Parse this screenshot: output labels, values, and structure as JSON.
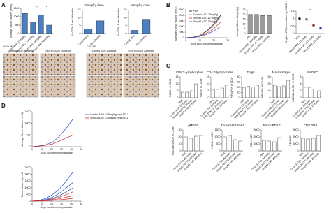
{
  "panel_letters": [
    "A",
    "B",
    "C",
    "D"
  ],
  "ihc": {
    "headers": [
      "ASO IHC",
      "CD8 IHC"
    ],
    "labels": [
      "Control ASO 25mg/kg",
      "SMYD3 ASO 25mg/kg",
      "Control ASO 25mg/kg",
      "SMYD3 ASO 25mg/kg"
    ]
  },
  "chart_data": [
    {
      "type": "bar",
      "ylabel": "Average Tumor Volume (mm3)",
      "categories": [
        "Control ASO 25mg/kg",
        "Smyd3 ASO 25mg/kg",
        "Control ASO 50mg/kg",
        "Smyd3 ASO 50mg/kg"
      ],
      "values": [
        1200,
        700,
        1100,
        500
      ],
      "color": "#4a7fc1",
      "ylim": [
        0,
        1500
      ],
      "yticks": [
        0,
        500,
        1000,
        1500
      ],
      "annotations": [
        "*",
        "*"
      ]
    },
    {
      "type": "bar",
      "title": "25mg/kg dose",
      "ylabel": "% CD8+ T cell infiltration",
      "categories": [
        "Control ASO",
        "Smyd3 ASO"
      ],
      "values": [
        3,
        8
      ],
      "color": "#4a7fc1",
      "ylim": [
        0,
        15
      ],
      "yticks": [
        0,
        5,
        10,
        15
      ],
      "annotations": [
        "*"
      ]
    },
    {
      "type": "bar",
      "title": "50mg/kg dose",
      "ylabel": "% CD8+ T cell infiltration",
      "categories": [
        "Control ASO",
        "Smyd3 ASO"
      ],
      "values": [
        2,
        9
      ],
      "color": "#4a7fc1",
      "ylim": [
        0,
        15
      ],
      "yticks": [
        0,
        5,
        10,
        15
      ],
      "annotations": [
        "*"
      ]
    },
    {
      "type": "line",
      "ylabel": "Average Tumor Volume (mm3)",
      "xlabel": "Days post-tumor implantation",
      "x": [
        0,
        5,
        10,
        15,
        20,
        25
      ],
      "xlim": [
        0,
        30
      ],
      "xticks": [
        0,
        10,
        20,
        30
      ],
      "ylim": [
        0,
        2500
      ],
      "yticks": [
        0,
        500,
        1000,
        1500,
        2000,
        2500
      ],
      "legend": "upper left",
      "series": [
        {
          "name": "PBS",
          "color": "#111111",
          "values": [
            0,
            50,
            200,
            600,
            1200,
            2000
          ]
        },
        {
          "name": "Control ASO 25mg/kg",
          "color": "#888888",
          "values": [
            0,
            50,
            180,
            550,
            1100,
            1900
          ]
        },
        {
          "name": "Smyd3 ASO 12.5mg/kg",
          "color": "#d62728",
          "values": [
            0,
            40,
            150,
            400,
            800,
            1400
          ]
        },
        {
          "name": "Smyd3 ASO 25mg/kg",
          "color": "#1f4fbf",
          "values": [
            0,
            30,
            120,
            300,
            600,
            1000
          ]
        }
      ]
    },
    {
      "type": "bar",
      "ylabel": "Average Mouse Weight (g)",
      "categories": [
        "PBS",
        "Control ASO 25mg/kg",
        "Smyd3 ASO 12.5mg/kg",
        "Smyd3 ASO 25mg/kg"
      ],
      "values": [
        20,
        20,
        19,
        19
      ],
      "color": "#9a9a9a",
      "ylim": [
        0,
        25
      ],
      "yticks": [
        0,
        5,
        10,
        15,
        20,
        25
      ]
    },
    {
      "type": "dot",
      "ylabel": "Smyd3 mRNA normalized by GAPDH",
      "categories": [
        "PBS",
        "Control ASO 25mg/kg",
        "Smyd3 ASO 12.5mg/kg",
        "Smyd3 ASO 25mg/kg"
      ],
      "values": [
        1.0,
        0.95,
        0.55,
        0.35
      ],
      "colors": [
        "#111111",
        "#888888",
        "#d62728",
        "#1f4fbf"
      ],
      "ylim": [
        0,
        1.5
      ],
      "yticks": [
        0,
        0.5,
        1,
        1.5
      ],
      "annotations": [
        "***"
      ]
    },
    {
      "type": "bar",
      "title": "CD8 T-lymphocytes",
      "ylabel": "%CD8+ of CD45+",
      "categories": [
        "PBS",
        "Control ASO 25mg/kg",
        "Smyd3 ASO 12.5mg/kg",
        "Smyd3 ASO 25mg/kg"
      ],
      "values": [
        4,
        4,
        5,
        10
      ],
      "color": "#ffffff",
      "ylim": [
        0,
        15
      ],
      "yticks": [
        0,
        5,
        10,
        15
      ],
      "annotations": [
        "*"
      ]
    },
    {
      "type": "bar",
      "title": "CD4 T-lymphocytes",
      "ylabel": "%CD4+ of CD45+",
      "categories": [
        "PBS",
        "Control ASO 25mg/kg",
        "Smyd3 ASO 12.5mg/kg",
        "Smyd3 ASO 25mg/kg"
      ],
      "values": [
        6,
        6,
        7,
        9
      ],
      "color": "#ffffff",
      "ylim": [
        0,
        15
      ],
      "yticks": [
        0,
        5,
        10,
        15
      ]
    },
    {
      "type": "bar",
      "title": "Tregs",
      "ylabel": "%FoxP3+ of CD4+",
      "categories": [
        "PBS",
        "Control ASO 25mg/kg",
        "Smyd3 ASO 12.5mg/kg",
        "Smyd3 ASO 25mg/kg"
      ],
      "values": [
        20,
        22,
        21,
        24
      ],
      "color": "#ffffff",
      "ylim": [
        0,
        40
      ],
      "yticks": [
        0,
        10,
        20,
        30,
        40
      ]
    },
    {
      "type": "bar",
      "title": "Macrophages",
      "ylabel": "%F4/80+ of CD45+",
      "categories": [
        "PBS",
        "Control ASO 25mg/kg",
        "Smyd3 ASO 12.5mg/kg",
        "Smyd3 ASO 25mg/kg"
      ],
      "values": [
        18,
        16,
        17,
        25
      ],
      "color": "#ffffff",
      "ylim": [
        0,
        30
      ],
      "yticks": [
        0,
        10,
        20,
        30
      ],
      "annotations": [
        "*"
      ]
    },
    {
      "type": "bar",
      "title": "mMDSC",
      "ylabel": "%CD11b+Ly6C+ of CD45+",
      "categories": [
        "PBS",
        "Control ASO 25mg/kg",
        "Smyd3 ASO 12.5mg/kg",
        "Smyd3 ASO 25mg/kg"
      ],
      "values": [
        3,
        3,
        2.5,
        2
      ],
      "color": "#ffffff",
      "ylim": [
        0,
        6
      ],
      "yticks": [
        0,
        2,
        4,
        6
      ],
      "annotations": [
        "*"
      ]
    },
    {
      "type": "bar",
      "title": "gMDSC",
      "ylabel": "%CD11b+Ly6G+ of CD45+",
      "categories": [
        "PBS",
        "Control ASO 25mg/kg",
        "Smyd3 ASO 12.5mg/kg",
        "Smyd3 ASO 25mg/kg"
      ],
      "values": [
        20,
        18,
        21,
        22
      ],
      "color": "#ffffff",
      "ylim": [
        0,
        30
      ],
      "yticks": [
        0,
        10,
        20,
        30
      ]
    },
    {
      "type": "bar",
      "title": "Tumor H3K4me3",
      "ylabel": "H3K4me3 MFI",
      "categories": [
        "PBS",
        "Control ASO 25mg/kg",
        "Smyd3 ASO 12.5mg/kg",
        "Smyd3 ASO 25mg/kg"
      ],
      "values": [
        1000,
        1100,
        800,
        700
      ],
      "color": "#ffffff",
      "ylim": [
        0,
        1500
      ],
      "yticks": [
        0,
        500,
        1000,
        1500
      ],
      "annotations": [
        "*"
      ]
    },
    {
      "type": "bar",
      "title": "Tumor PD-L1",
      "ylabel": "PD-L1 MFI",
      "categories": [
        "PBS",
        "Control ASO 25mg/kg",
        "Smyd3 ASO 12.5mg/kg",
        "Smyd3 ASO 25mg/kg"
      ],
      "values": [
        1500,
        1400,
        1300,
        1900
      ],
      "color": "#ffffff",
      "ylim": [
        0,
        3000
      ],
      "yticks": [
        0,
        1000,
        2000,
        3000
      ]
    },
    {
      "type": "bar",
      "title": "CD8 PD-1",
      "ylabel": "PD-1 MFI",
      "categories": [
        "PBS",
        "Control ASO 25mg/kg",
        "Smyd3 ASO 12.5mg/kg",
        "Smyd3 ASO 25mg/kg"
      ],
      "values": [
        1800,
        1700,
        1800,
        2200
      ],
      "color": "#ffffff",
      "ylim": [
        0,
        3000
      ],
      "yticks": [
        0,
        1000,
        2000,
        3000
      ]
    },
    {
      "type": "line",
      "ylabel": "Average Tumor Volume (mm3)",
      "xlabel": "Days post-tumor implantation",
      "x": [
        0,
        7,
        14,
        21,
        28,
        35,
        42
      ],
      "xlim": [
        0,
        50
      ],
      "xticks": [
        0,
        10,
        20,
        30,
        40,
        50
      ],
      "ylim": [
        0,
        1500
      ],
      "yticks": [
        0,
        500,
        1000,
        1500
      ],
      "legend": "right",
      "annotations": [
        "**"
      ],
      "series": [
        {
          "name": "Control ASO 12.5mg/kg+anti-PD-1",
          "color": "#1f4fbf",
          "values": [
            0,
            30,
            80,
            200,
            450,
            800,
            1200
          ]
        },
        {
          "name": "Smyd3 ASO 12.5mg/kg+anti-PD-1",
          "color": "#d62728",
          "values": [
            0,
            25,
            60,
            120,
            250,
            380,
            500
          ]
        }
      ]
    },
    {
      "type": "line",
      "ylabel": "Tumor Volumes (mm3)",
      "xlabel": "Days post-tumor implantation",
      "x": [
        0,
        7,
        14,
        21,
        28,
        35,
        42
      ],
      "xlim": [
        0,
        50
      ],
      "xticks": [
        0,
        10,
        20,
        30,
        40,
        50
      ],
      "ylim": [
        0,
        2500
      ],
      "yticks": [
        0,
        500,
        1000,
        1500,
        2000,
        2500
      ],
      "series": [
        {
          "color": "#1f4fbf",
          "values": [
            0,
            60,
            200,
            500,
            900,
            1500,
            2200
          ]
        },
        {
          "color": "#1f4fbf",
          "values": [
            0,
            40,
            120,
            300,
            600,
            1000,
            1400
          ]
        },
        {
          "color": "#1f4fbf",
          "values": [
            0,
            30,
            90,
            200,
            400,
            700,
            1000
          ]
        },
        {
          "color": "#d62728",
          "values": [
            0,
            30,
            80,
            150,
            300,
            500,
            700
          ]
        },
        {
          "color": "#d62728",
          "values": [
            0,
            20,
            50,
            100,
            180,
            300,
            400
          ]
        },
        {
          "color": "#d62728",
          "values": [
            0,
            10,
            30,
            60,
            100,
            150,
            200
          ]
        }
      ]
    }
  ]
}
